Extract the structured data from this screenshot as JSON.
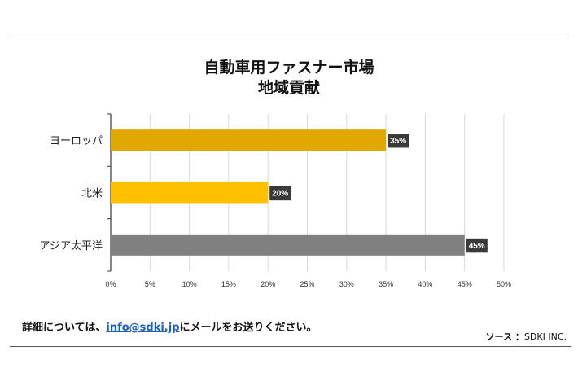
{
  "chart_data": {
    "type": "bar",
    "orientation": "horizontal",
    "title": [
      "自動車用ファスナー市場",
      "地域貢献"
    ],
    "categories": [
      "ヨーロッパ",
      "北米",
      "アジア太平洋"
    ],
    "values": [
      35,
      20,
      45
    ],
    "data_labels": [
      "35%",
      "20%",
      "45%"
    ],
    "colors": [
      "#E0A800",
      "#FFC000",
      "#808080"
    ],
    "xlim": [
      0,
      50
    ],
    "xticks": [
      0,
      5,
      10,
      15,
      20,
      25,
      30,
      35,
      40,
      45,
      50
    ],
    "xtick_labels": [
      "0%",
      "5%",
      "10%",
      "15%",
      "20%",
      "25%",
      "30%",
      "35%",
      "40%",
      "45%",
      "50%"
    ],
    "grid": true,
    "xlabel": "",
    "ylabel": ""
  },
  "footer": {
    "prefix": "詳細については、",
    "email": "info@sdki.jp",
    "suffix": "にメールをお送りください。",
    "source_label": "ソース ：",
    "source_value": "SDKI INC."
  }
}
